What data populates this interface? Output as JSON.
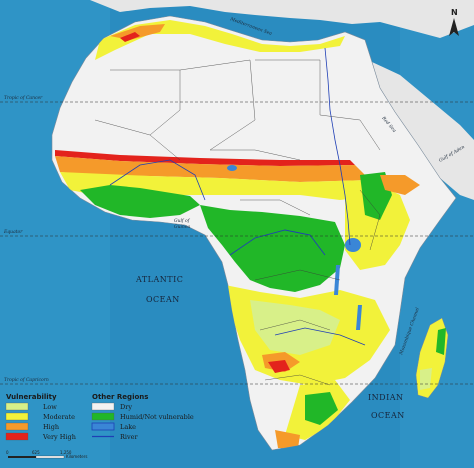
{
  "labels": {
    "atlantic_ocean_line1": "ATLANTIC",
    "atlantic_ocean_line2": "OCEAN",
    "indian_ocean_line1": "INDIAN",
    "indian_ocean_line2": "OCEAN",
    "mediterranean": "Mediterranean Sea",
    "red_sea": "Red Sea",
    "gulf_of_aden": "Gulf of Aden",
    "gulf_of_guinea_1": "Gulf of",
    "gulf_of_guinea_2": "Guinea",
    "mozambique_channel": "Mozambique Channel",
    "tropic_cancer": "Tropic of Cancer",
    "equator": "Equator",
    "tropic_capricorn": "Tropic of Capricorn",
    "north": "N"
  },
  "legend": {
    "vulnerability_title": "Vulnerability",
    "other_title": "Other Regions",
    "vulnerability_items": [
      {
        "label": "Low",
        "color": "#d8f089"
      },
      {
        "label": "Moderate",
        "color": "#f2f23a"
      },
      {
        "label": "High",
        "color": "#f59a2a"
      },
      {
        "label": "Very High",
        "color": "#e3231c"
      }
    ],
    "other_items": [
      {
        "label": "Dry",
        "color": "#f2f2f2"
      },
      {
        "label": "Humid/Not vulnerable",
        "color": "#21b728"
      },
      {
        "label": "Lake",
        "color": "#3a86d6"
      },
      {
        "label": "River",
        "color": "#1f3fb5"
      }
    ]
  },
  "scale": {
    "tick0": "0",
    "tick1": "625",
    "tick2": "1,250",
    "unit": "Kilometers"
  },
  "colors": {
    "ocean": "#2a8cc0",
    "dry": "#f2f2f2",
    "low": "#d8f089",
    "moderate": "#f2f23a",
    "high": "#f59a2a",
    "very_high": "#e3231c",
    "humid": "#21b728"
  }
}
